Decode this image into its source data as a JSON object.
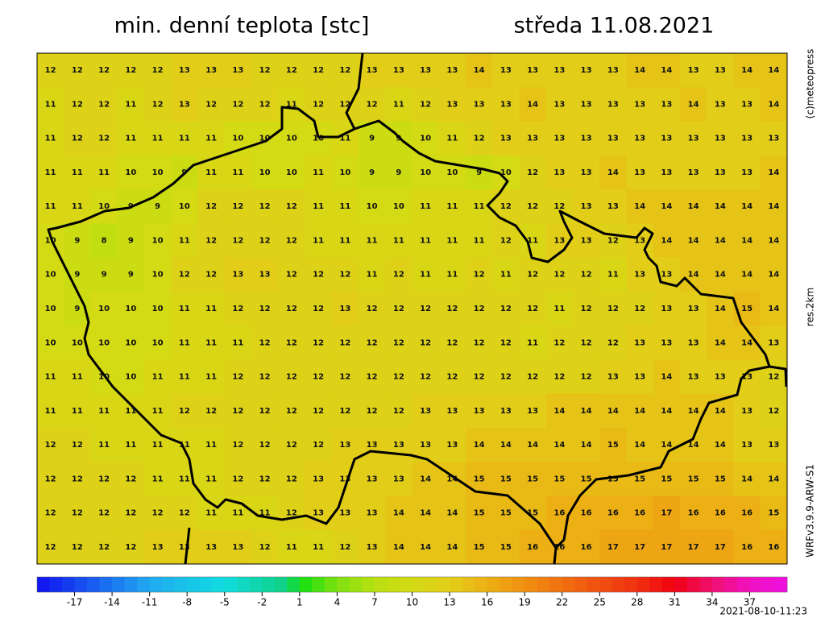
{
  "header": {
    "title": "min. denní teplota [stc]",
    "date": "středa 11.08.2021"
  },
  "side": {
    "copyright": "(c)meteopress",
    "resolution": "res.2km",
    "model": "WRFv3.9.9-ARW-S1"
  },
  "footer": {
    "timestamp": "2021-08-10-11:23"
  },
  "colorbar": {
    "range": [
      -20,
      40
    ],
    "ticks": [
      -17,
      -14,
      -11,
      -8,
      -5,
      -2,
      1,
      4,
      7,
      10,
      13,
      16,
      19,
      22,
      25,
      28,
      31,
      34,
      37
    ]
  },
  "grid": {
    "values": [
      [
        12,
        12,
        12,
        12,
        12,
        13,
        13,
        13,
        12,
        12,
        12,
        12,
        13,
        13,
        13,
        13,
        14,
        13,
        13,
        13,
        13,
        13,
        14,
        14,
        13,
        13,
        14,
        14
      ],
      [
        11,
        12,
        12,
        11,
        12,
        13,
        12,
        12,
        12,
        11,
        12,
        12,
        12,
        11,
        12,
        13,
        13,
        13,
        14,
        13,
        13,
        13,
        13,
        13,
        14,
        13,
        13,
        14
      ],
      [
        11,
        12,
        12,
        11,
        11,
        11,
        11,
        10,
        10,
        10,
        10,
        11,
        9,
        9,
        10,
        11,
        12,
        13,
        13,
        13,
        13,
        13,
        13,
        13,
        13,
        13,
        13,
        13
      ],
      [
        11,
        11,
        11,
        10,
        10,
        9,
        11,
        11,
        10,
        10,
        11,
        10,
        9,
        9,
        10,
        10,
        9,
        10,
        12,
        13,
        13,
        14,
        13,
        13,
        13,
        13,
        13,
        14
      ],
      [
        11,
        11,
        10,
        9,
        9,
        10,
        12,
        12,
        12,
        12,
        11,
        11,
        10,
        10,
        11,
        11,
        11,
        12,
        12,
        12,
        13,
        13,
        14,
        14,
        14,
        14,
        14,
        14
      ],
      [
        10,
        9,
        8,
        9,
        10,
        11,
        12,
        12,
        12,
        12,
        11,
        11,
        11,
        11,
        11,
        11,
        11,
        12,
        11,
        13,
        13,
        12,
        13,
        14,
        14,
        14,
        14,
        14
      ],
      [
        10,
        9,
        9,
        9,
        10,
        12,
        12,
        13,
        13,
        12,
        12,
        12,
        11,
        12,
        11,
        11,
        12,
        11,
        12,
        12,
        12,
        11,
        13,
        13,
        14,
        14,
        14,
        14
      ],
      [
        10,
        9,
        10,
        10,
        10,
        11,
        11,
        12,
        12,
        12,
        12,
        13,
        12,
        12,
        12,
        12,
        12,
        12,
        12,
        11,
        12,
        12,
        12,
        13,
        13,
        14,
        15,
        14
      ],
      [
        10,
        10,
        10,
        10,
        10,
        11,
        11,
        11,
        12,
        12,
        12,
        12,
        12,
        12,
        12,
        12,
        12,
        12,
        11,
        12,
        12,
        12,
        13,
        13,
        13,
        14,
        14,
        13
      ],
      [
        11,
        11,
        10,
        10,
        11,
        11,
        11,
        12,
        12,
        12,
        12,
        12,
        12,
        12,
        12,
        12,
        12,
        12,
        12,
        12,
        12,
        13,
        13,
        14,
        13,
        13,
        13,
        12
      ],
      [
        11,
        11,
        11,
        11,
        11,
        12,
        12,
        12,
        12,
        12,
        12,
        12,
        12,
        12,
        13,
        13,
        13,
        13,
        13,
        14,
        14,
        14,
        14,
        14,
        14,
        14,
        13,
        12
      ],
      [
        12,
        12,
        11,
        11,
        11,
        11,
        11,
        12,
        12,
        12,
        12,
        13,
        13,
        13,
        13,
        13,
        14,
        14,
        14,
        14,
        14,
        15,
        14,
        14,
        14,
        14,
        13,
        13
      ],
      [
        12,
        12,
        12,
        12,
        11,
        11,
        11,
        12,
        12,
        12,
        13,
        13,
        13,
        13,
        14,
        14,
        15,
        15,
        15,
        15,
        15,
        15,
        15,
        15,
        15,
        15,
        14,
        14
      ],
      [
        12,
        12,
        12,
        12,
        12,
        12,
        11,
        11,
        11,
        12,
        13,
        13,
        13,
        14,
        14,
        14,
        15,
        15,
        15,
        16,
        16,
        16,
        16,
        17,
        16,
        16,
        16,
        15
      ],
      [
        12,
        12,
        12,
        12,
        13,
        13,
        13,
        13,
        12,
        11,
        11,
        12,
        13,
        14,
        14,
        14,
        15,
        15,
        16,
        16,
        16,
        17,
        17,
        17,
        17,
        17,
        16,
        16
      ]
    ]
  }
}
